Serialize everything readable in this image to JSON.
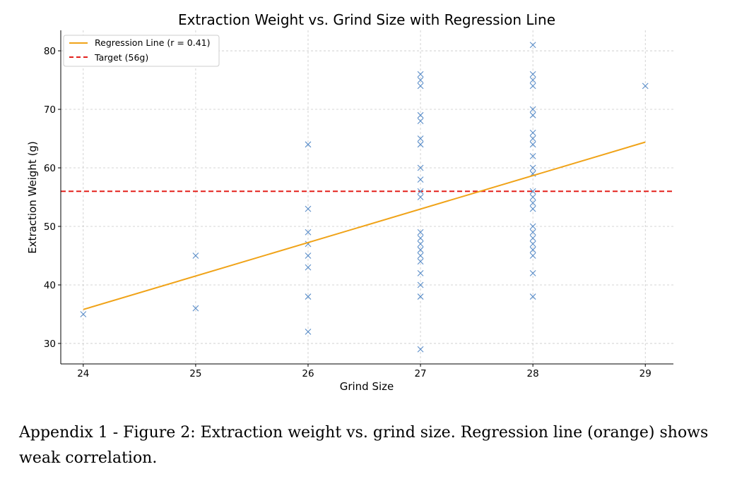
{
  "chart_data": {
    "type": "scatter",
    "title": "Extraction Weight vs. Grind Size with Regression Line",
    "xlabel": "Grind Size",
    "ylabel": "Extraction Weight (g)",
    "xlim": [
      23.8,
      29.25
    ],
    "ylim": [
      26.5,
      83.5
    ],
    "xticks": [
      24,
      25,
      26,
      27,
      28,
      29
    ],
    "yticks": [
      30,
      40,
      50,
      60,
      70,
      80
    ],
    "grid": true,
    "legend_position": "top-left",
    "colors": {
      "points": "#5b8ec9",
      "regression": "#f0a318",
      "target": "#e3201c",
      "grid": "#c8c8c8"
    },
    "series": [
      {
        "marker": "x",
        "points": [
          [
            24,
            35
          ],
          [
            25,
            45
          ],
          [
            25,
            36
          ],
          [
            26,
            64
          ],
          [
            26,
            53
          ],
          [
            26,
            49
          ],
          [
            26,
            47
          ],
          [
            26,
            45
          ],
          [
            26,
            43
          ],
          [
            26,
            38
          ],
          [
            26,
            32
          ],
          [
            27,
            76
          ],
          [
            27,
            75
          ],
          [
            27,
            74
          ],
          [
            27,
            69
          ],
          [
            27,
            68
          ],
          [
            27,
            65
          ],
          [
            27,
            64
          ],
          [
            27,
            60
          ],
          [
            27,
            58
          ],
          [
            27,
            56
          ],
          [
            27,
            55
          ],
          [
            27,
            49
          ],
          [
            27,
            48
          ],
          [
            27,
            47
          ],
          [
            27,
            46
          ],
          [
            27,
            45
          ],
          [
            27,
            44
          ],
          [
            27,
            42
          ],
          [
            27,
            40
          ],
          [
            27,
            38
          ],
          [
            27,
            29
          ],
          [
            28,
            81
          ],
          [
            28,
            76
          ],
          [
            28,
            75
          ],
          [
            28,
            74
          ],
          [
            28,
            70
          ],
          [
            28,
            69
          ],
          [
            28,
            66
          ],
          [
            28,
            65
          ],
          [
            28,
            64
          ],
          [
            28,
            62
          ],
          [
            28,
            60
          ],
          [
            28,
            59
          ],
          [
            28,
            56
          ],
          [
            28,
            55
          ],
          [
            28,
            54
          ],
          [
            28,
            53
          ],
          [
            28,
            50
          ],
          [
            28,
            49
          ],
          [
            28,
            48
          ],
          [
            28,
            47
          ],
          [
            28,
            46
          ],
          [
            28,
            45
          ],
          [
            28,
            42
          ],
          [
            28,
            38
          ],
          [
            29,
            74
          ]
        ]
      },
      {
        "name": "Regression Line (r = 0.41)",
        "kind": "line",
        "x": [
          24,
          29
        ],
        "y": [
          35.8,
          64.4
        ]
      },
      {
        "name": "Target (56g)",
        "kind": "hline",
        "y": 56
      }
    ]
  },
  "caption": "Appendix 1 - Figure 2: Extraction weight vs. grind size. Regression line (orange) shows weak correlation."
}
